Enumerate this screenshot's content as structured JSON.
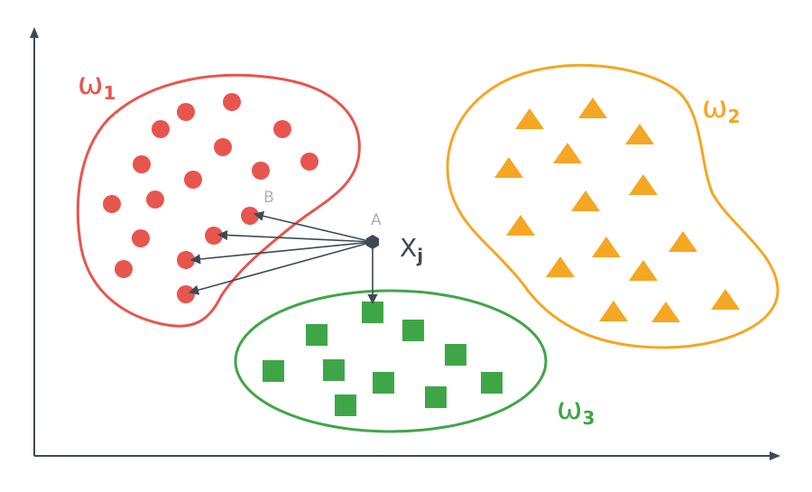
{
  "clusters": [
    {
      "id": "w1",
      "label_main": "ω",
      "label_sub": "1",
      "color": "#e8554e",
      "marker": "circle"
    },
    {
      "id": "w2",
      "label_main": "ω",
      "label_sub": "2",
      "color": "#f5a623",
      "marker": "triangle"
    },
    {
      "id": "w3",
      "label_main": "ω",
      "label_sub": "3",
      "color": "#3fa648",
      "marker": "square"
    }
  ],
  "sample": {
    "label_main": "X",
    "label_sub": "j",
    "color": "#3d4a55"
  },
  "annotations": {
    "point_a": "A",
    "point_b": "B",
    "annotation_color": "#b0b0b0"
  },
  "axes_color": "#3d4a55"
}
